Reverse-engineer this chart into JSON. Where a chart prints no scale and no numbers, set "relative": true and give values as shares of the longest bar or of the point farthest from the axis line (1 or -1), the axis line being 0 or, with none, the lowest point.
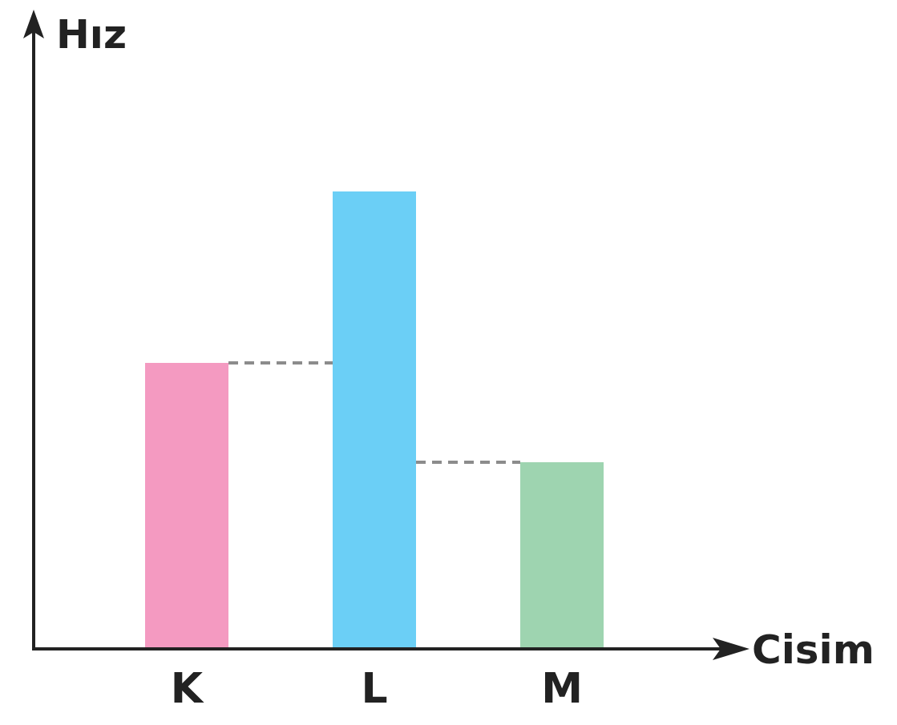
{
  "chart_data": {
    "type": "bar",
    "xlabel": "Cisim",
    "ylabel": "Hız",
    "relative": true,
    "categories": [
      "K",
      "L",
      "M"
    ],
    "values": [
      0.625,
      1,
      0.408
    ],
    "colors": [
      "#f49ac1",
      "#6bcff6",
      "#9ed4b0"
    ],
    "ref_lines": [
      {
        "axis": "y",
        "value": 0.625,
        "color": "#8c8c8c",
        "line_style": "dashed"
      },
      {
        "axis": "y",
        "value": 0.408,
        "color": "#8c8c8c",
        "line_style": "dashed"
      }
    ]
  }
}
